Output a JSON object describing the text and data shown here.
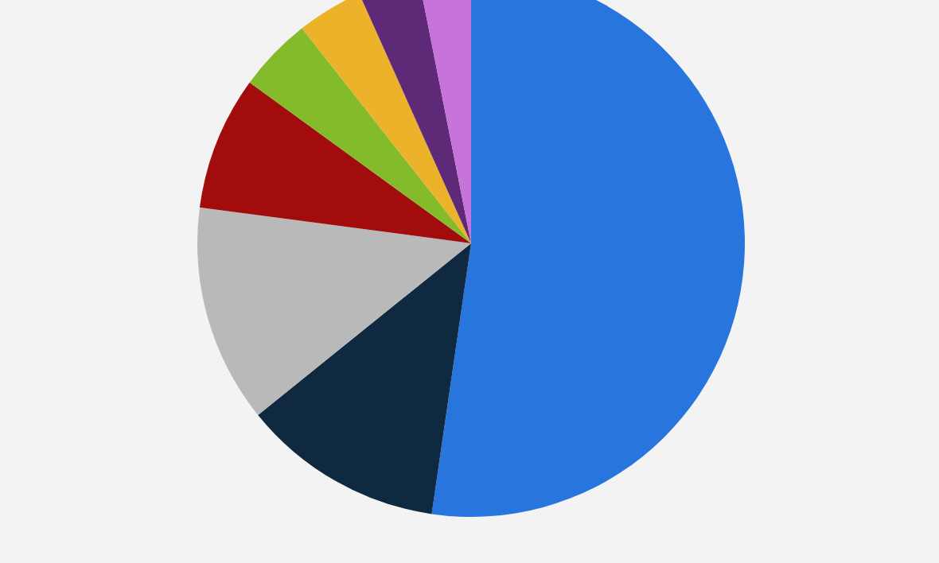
{
  "chart_data": {
    "type": "pie",
    "categories": [
      null,
      null,
      null,
      null,
      null,
      null,
      null,
      null
    ],
    "values": [
      52.3,
      11.9,
      12.9,
      7.9,
      4.4,
      3.9,
      3.6,
      3.1
    ],
    "colors": [
      "#2876dd",
      "#0f2a40",
      "#b9b9b9",
      "#a30c0c",
      "#84bb2a",
      "#ecb22a",
      "#5e2a77",
      "#c674dc"
    ]
  }
}
